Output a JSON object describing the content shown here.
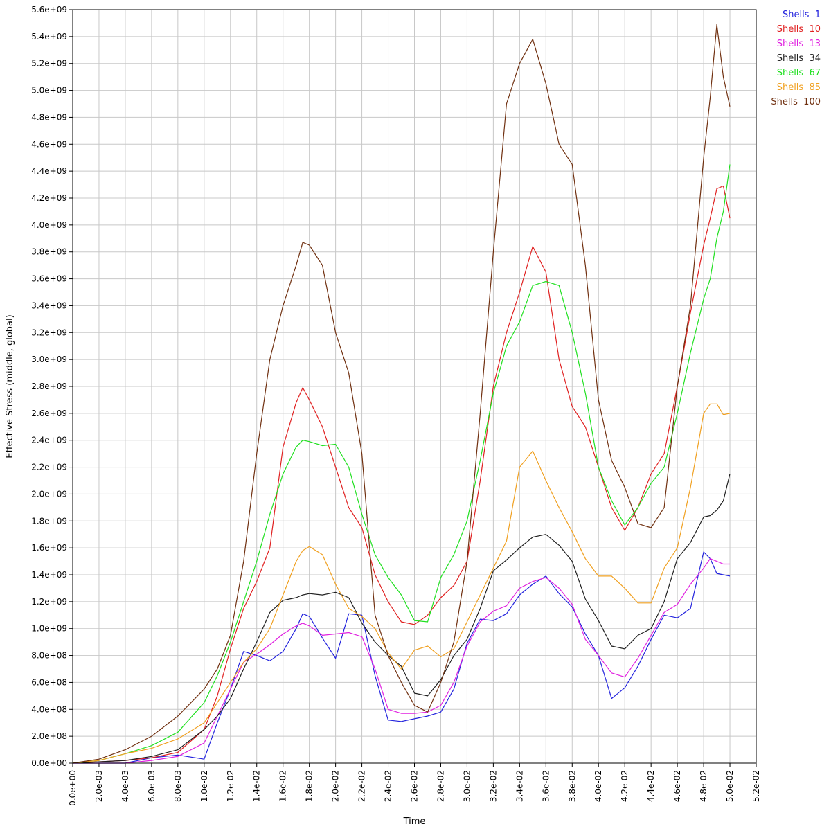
{
  "chart_data": {
    "type": "line",
    "title": "",
    "xlabel": "Time",
    "ylabel": "Effective Stress (middle, global)",
    "xlim": [
      0,
      0.052
    ],
    "ylim": [
      0,
      5600000000
    ],
    "grid": true,
    "legend_position": "top-right",
    "x_ticks": [
      {
        "value": 0.0,
        "label": "0.0e+00"
      },
      {
        "value": 0.002,
        "label": "2.0e-03"
      },
      {
        "value": 0.004,
        "label": "4.0e-03"
      },
      {
        "value": 0.006,
        "label": "6.0e-03"
      },
      {
        "value": 0.008,
        "label": "8.0e-03"
      },
      {
        "value": 0.01,
        "label": "1.0e-02"
      },
      {
        "value": 0.012,
        "label": "1.2e-02"
      },
      {
        "value": 0.014,
        "label": "1.4e-02"
      },
      {
        "value": 0.016,
        "label": "1.6e-02"
      },
      {
        "value": 0.018,
        "label": "1.8e-02"
      },
      {
        "value": 0.02,
        "label": "2.0e-02"
      },
      {
        "value": 0.022,
        "label": "2.2e-02"
      },
      {
        "value": 0.024,
        "label": "2.4e-02"
      },
      {
        "value": 0.026,
        "label": "2.6e-02"
      },
      {
        "value": 0.028,
        "label": "2.8e-02"
      },
      {
        "value": 0.03,
        "label": "3.0e-02"
      },
      {
        "value": 0.032,
        "label": "3.2e-02"
      },
      {
        "value": 0.034,
        "label": "3.4e-02"
      },
      {
        "value": 0.036,
        "label": "3.6e-02"
      },
      {
        "value": 0.038,
        "label": "3.8e-02"
      },
      {
        "value": 0.04,
        "label": "4.0e-02"
      },
      {
        "value": 0.042,
        "label": "4.2e-02"
      },
      {
        "value": 0.044,
        "label": "4.4e-02"
      },
      {
        "value": 0.046,
        "label": "4.6e-02"
      },
      {
        "value": 0.048,
        "label": "4.8e-02"
      },
      {
        "value": 0.05,
        "label": "5.0e-02"
      },
      {
        "value": 0.052,
        "label": "5.2e-02"
      }
    ],
    "y_ticks": [
      {
        "value": 0,
        "label": "0.0e+00"
      },
      {
        "value": 200000000,
        "label": "2.0e+08"
      },
      {
        "value": 400000000,
        "label": "4.0e+08"
      },
      {
        "value": 600000000,
        "label": "6.0e+08"
      },
      {
        "value": 800000000,
        "label": "8.0e+08"
      },
      {
        "value": 1000000000,
        "label": "1.0e+09"
      },
      {
        "value": 1200000000,
        "label": "1.2e+09"
      },
      {
        "value": 1400000000,
        "label": "1.4e+09"
      },
      {
        "value": 1600000000,
        "label": "1.6e+09"
      },
      {
        "value": 1800000000,
        "label": "1.8e+09"
      },
      {
        "value": 2000000000,
        "label": "2.0e+09"
      },
      {
        "value": 2200000000,
        "label": "2.2e+09"
      },
      {
        "value": 2400000000,
        "label": "2.4e+09"
      },
      {
        "value": 2600000000,
        "label": "2.6e+09"
      },
      {
        "value": 2800000000,
        "label": "2.8e+09"
      },
      {
        "value": 3000000000,
        "label": "3.0e+09"
      },
      {
        "value": 3200000000,
        "label": "3.2e+09"
      },
      {
        "value": 3400000000,
        "label": "3.4e+09"
      },
      {
        "value": 3600000000,
        "label": "3.6e+09"
      },
      {
        "value": 3800000000,
        "label": "3.8e+09"
      },
      {
        "value": 4000000000,
        "label": "4.0e+09"
      },
      {
        "value": 4200000000,
        "label": "4.2e+09"
      },
      {
        "value": 4400000000,
        "label": "4.4e+09"
      },
      {
        "value": 4600000000,
        "label": "4.6e+09"
      },
      {
        "value": 4800000000,
        "label": "4.8e+09"
      },
      {
        "value": 5000000000,
        "label": "5.0e+09"
      },
      {
        "value": 5200000000,
        "label": "5.2e+09"
      },
      {
        "value": 5400000000,
        "label": "5.4e+09"
      },
      {
        "value": 5600000000,
        "label": "5.6e+09"
      }
    ],
    "x": [
      0.0,
      0.002,
      0.004,
      0.006,
      0.008,
      0.01,
      0.011,
      0.012,
      0.013,
      0.014,
      0.015,
      0.016,
      0.017,
      0.0175,
      0.018,
      0.019,
      0.02,
      0.021,
      0.022,
      0.023,
      0.024,
      0.025,
      0.026,
      0.027,
      0.028,
      0.029,
      0.03,
      0.031,
      0.032,
      0.033,
      0.034,
      0.035,
      0.036,
      0.037,
      0.038,
      0.039,
      0.04,
      0.041,
      0.042,
      0.043,
      0.044,
      0.045,
      0.046,
      0.047,
      0.048,
      0.0485,
      0.049,
      0.0495,
      0.05
    ],
    "series": [
      {
        "name": "Shells  1",
        "color": "#2222dd",
        "values": [
          0,
          0,
          0,
          40000000,
          60000000,
          30000000,
          300000000,
          550000000,
          830000000,
          800000000,
          760000000,
          830000000,
          1000000000,
          1110000000,
          1090000000,
          930000000,
          780000000,
          1110000000,
          1100000000,
          650000000,
          320000000,
          310000000,
          330000000,
          350000000,
          380000000,
          550000000,
          890000000,
          1070000000,
          1060000000,
          1110000000,
          1250000000,
          1330000000,
          1390000000,
          1260000000,
          1160000000,
          960000000,
          800000000,
          480000000,
          560000000,
          720000000,
          920000000,
          1100000000,
          1080000000,
          1150000000,
          1570000000,
          1520000000,
          1410000000,
          1400000000,
          1390000000
        ]
      },
      {
        "name": "Shells  10",
        "color": "#e02020",
        "values": [
          0,
          10000000,
          20000000,
          40000000,
          80000000,
          250000000,
          500000000,
          850000000,
          1150000000,
          1350000000,
          1600000000,
          2350000000,
          2680000000,
          2790000000,
          2700000000,
          2500000000,
          2200000000,
          1900000000,
          1750000000,
          1400000000,
          1200000000,
          1050000000,
          1030000000,
          1100000000,
          1230000000,
          1320000000,
          1500000000,
          2100000000,
          2800000000,
          3200000000,
          3500000000,
          3840000000,
          3650000000,
          3000000000,
          2650000000,
          2500000000,
          2200000000,
          1900000000,
          1730000000,
          1900000000,
          2150000000,
          2300000000,
          2800000000,
          3350000000,
          3850000000,
          4050000000,
          4270000000,
          4290000000,
          4050000000
        ]
      },
      {
        "name": "Shells  13",
        "color": "#e020e0",
        "values": [
          0,
          0,
          0,
          20000000,
          50000000,
          150000000,
          350000000,
          550000000,
          750000000,
          810000000,
          880000000,
          960000000,
          1020000000,
          1040000000,
          1020000000,
          950000000,
          960000000,
          970000000,
          940000000,
          700000000,
          400000000,
          370000000,
          370000000,
          380000000,
          430000000,
          600000000,
          870000000,
          1050000000,
          1130000000,
          1170000000,
          1300000000,
          1350000000,
          1380000000,
          1300000000,
          1180000000,
          920000000,
          800000000,
          670000000,
          640000000,
          780000000,
          950000000,
          1120000000,
          1180000000,
          1330000000,
          1450000000,
          1520000000,
          1500000000,
          1480000000,
          1480000000
        ]
      },
      {
        "name": "Shells  34",
        "color": "#202020",
        "values": [
          0,
          10000000,
          20000000,
          50000000,
          100000000,
          250000000,
          350000000,
          480000000,
          700000000,
          900000000,
          1120000000,
          1210000000,
          1230000000,
          1250000000,
          1260000000,
          1250000000,
          1270000000,
          1230000000,
          1040000000,
          900000000,
          800000000,
          720000000,
          520000000,
          500000000,
          620000000,
          800000000,
          920000000,
          1150000000,
          1430000000,
          1510000000,
          1600000000,
          1680000000,
          1700000000,
          1620000000,
          1500000000,
          1220000000,
          1060000000,
          870000000,
          850000000,
          950000000,
          1000000000,
          1200000000,
          1520000000,
          1640000000,
          1830000000,
          1840000000,
          1880000000,
          1950000000,
          2150000000
        ]
      },
      {
        "name": "Shells  67",
        "color": "#20e020",
        "values": [
          0,
          20000000,
          70000000,
          130000000,
          230000000,
          450000000,
          650000000,
          900000000,
          1200000000,
          1500000000,
          1850000000,
          2150000000,
          2350000000,
          2400000000,
          2390000000,
          2360000000,
          2370000000,
          2200000000,
          1850000000,
          1550000000,
          1380000000,
          1250000000,
          1060000000,
          1050000000,
          1380000000,
          1550000000,
          1800000000,
          2250000000,
          2750000000,
          3100000000,
          3280000000,
          3550000000,
          3580000000,
          3550000000,
          3200000000,
          2750000000,
          2200000000,
          1950000000,
          1770000000,
          1900000000,
          2080000000,
          2200000000,
          2600000000,
          3050000000,
          3450000000,
          3600000000,
          3900000000,
          4100000000,
          4450000000
        ]
      },
      {
        "name": "Shells  85",
        "color": "#f0a020",
        "values": [
          0,
          20000000,
          70000000,
          110000000,
          180000000,
          300000000,
          450000000,
          600000000,
          750000000,
          850000000,
          1000000000,
          1250000000,
          1500000000,
          1580000000,
          1610000000,
          1550000000,
          1330000000,
          1150000000,
          1090000000,
          1000000000,
          820000000,
          700000000,
          840000000,
          870000000,
          790000000,
          850000000,
          1050000000,
          1250000000,
          1450000000,
          1650000000,
          2200000000,
          2320000000,
          2100000000,
          1900000000,
          1720000000,
          1520000000,
          1390000000,
          1390000000,
          1300000000,
          1190000000,
          1190000000,
          1450000000,
          1600000000,
          2050000000,
          2600000000,
          2670000000,
          2670000000,
          2590000000,
          2600000000
        ]
      },
      {
        "name": "Shells  100",
        "color": "#703010",
        "values": [
          0,
          30000000,
          100000000,
          200000000,
          350000000,
          550000000,
          700000000,
          950000000,
          1500000000,
          2300000000,
          3000000000,
          3400000000,
          3700000000,
          3870000000,
          3850000000,
          3700000000,
          3200000000,
          2900000000,
          2300000000,
          1100000000,
          800000000,
          600000000,
          430000000,
          380000000,
          600000000,
          900000000,
          1500000000,
          2600000000,
          3800000000,
          4900000000,
          5200000000,
          5380000000,
          5050000000,
          4600000000,
          4450000000,
          3700000000,
          2700000000,
          2250000000,
          2050000000,
          1780000000,
          1750000000,
          1900000000,
          2800000000,
          3400000000,
          4500000000,
          4950000000,
          5490000000,
          5100000000,
          4880000000
        ]
      }
    ]
  }
}
